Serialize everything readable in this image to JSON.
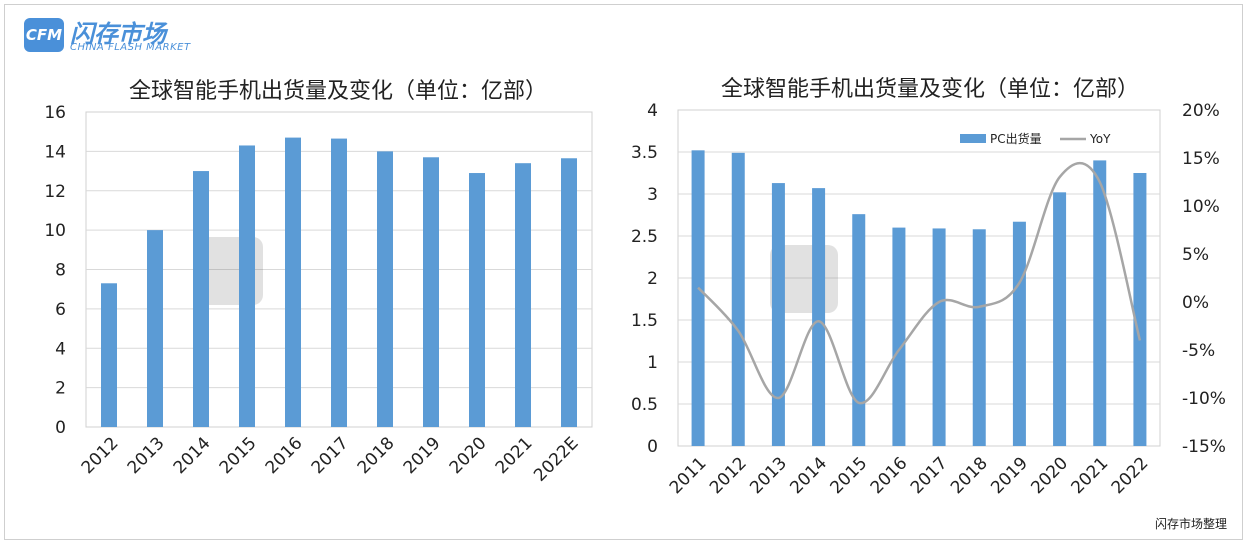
{
  "brand": {
    "logo_mark": "CFM",
    "name_cn": "闪存市场",
    "name_en": "CHINA FLASH MARKET"
  },
  "footer": {
    "source": "闪存市场整理"
  },
  "colors": {
    "bar": "#5b9bd5",
    "line": "#a6a6a6",
    "grid": "#d9d9d9"
  },
  "chart_data": [
    {
      "type": "bar",
      "title": "全球智能手机出货量及变化（单位：亿部）",
      "categories": [
        "2012",
        "2013",
        "2014",
        "2015",
        "2016",
        "2017",
        "2018",
        "2019",
        "2020",
        "2021",
        "2022E"
      ],
      "values": [
        7.3,
        10.0,
        13.0,
        14.3,
        14.7,
        14.65,
        14.0,
        13.7,
        12.9,
        13.4,
        13.65
      ],
      "ylim": [
        0,
        16
      ],
      "yticks": [
        "0",
        "2",
        "4",
        "6",
        "8",
        "10",
        "12",
        "14",
        "16"
      ],
      "grid": true,
      "legend": "none"
    },
    {
      "type": "bar+line",
      "title": "全球智能手机出货量及变化（单位：亿部）",
      "categories": [
        "2011",
        "2012",
        "2013",
        "2014",
        "2015",
        "2016",
        "2017",
        "2018",
        "2019",
        "2020",
        "2021",
        "2022"
      ],
      "series": [
        {
          "name": "PC出货量",
          "type": "bar",
          "axis": "left",
          "values": [
            3.52,
            3.49,
            3.13,
            3.07,
            2.76,
            2.6,
            2.59,
            2.58,
            2.67,
            3.02,
            3.4,
            3.25
          ]
        },
        {
          "name": "YoY",
          "type": "line",
          "axis": "right",
          "values": [
            1.5,
            -3.0,
            -10.0,
            -2.0,
            -10.5,
            -5.0,
            0.0,
            -0.5,
            2.0,
            13.0,
            12.5,
            -4.0
          ]
        }
      ],
      "ylim": [
        0,
        4
      ],
      "yticks": [
        "0",
        "0.5",
        "1",
        "1.5",
        "2",
        "2.5",
        "3",
        "3.5",
        "4"
      ],
      "y2lim": [
        -15,
        20
      ],
      "y2ticks": [
        "-15%",
        "-10%",
        "-5%",
        "0%",
        "5%",
        "10%",
        "15%",
        "20%"
      ],
      "grid": true,
      "legend": "top-right"
    }
  ]
}
